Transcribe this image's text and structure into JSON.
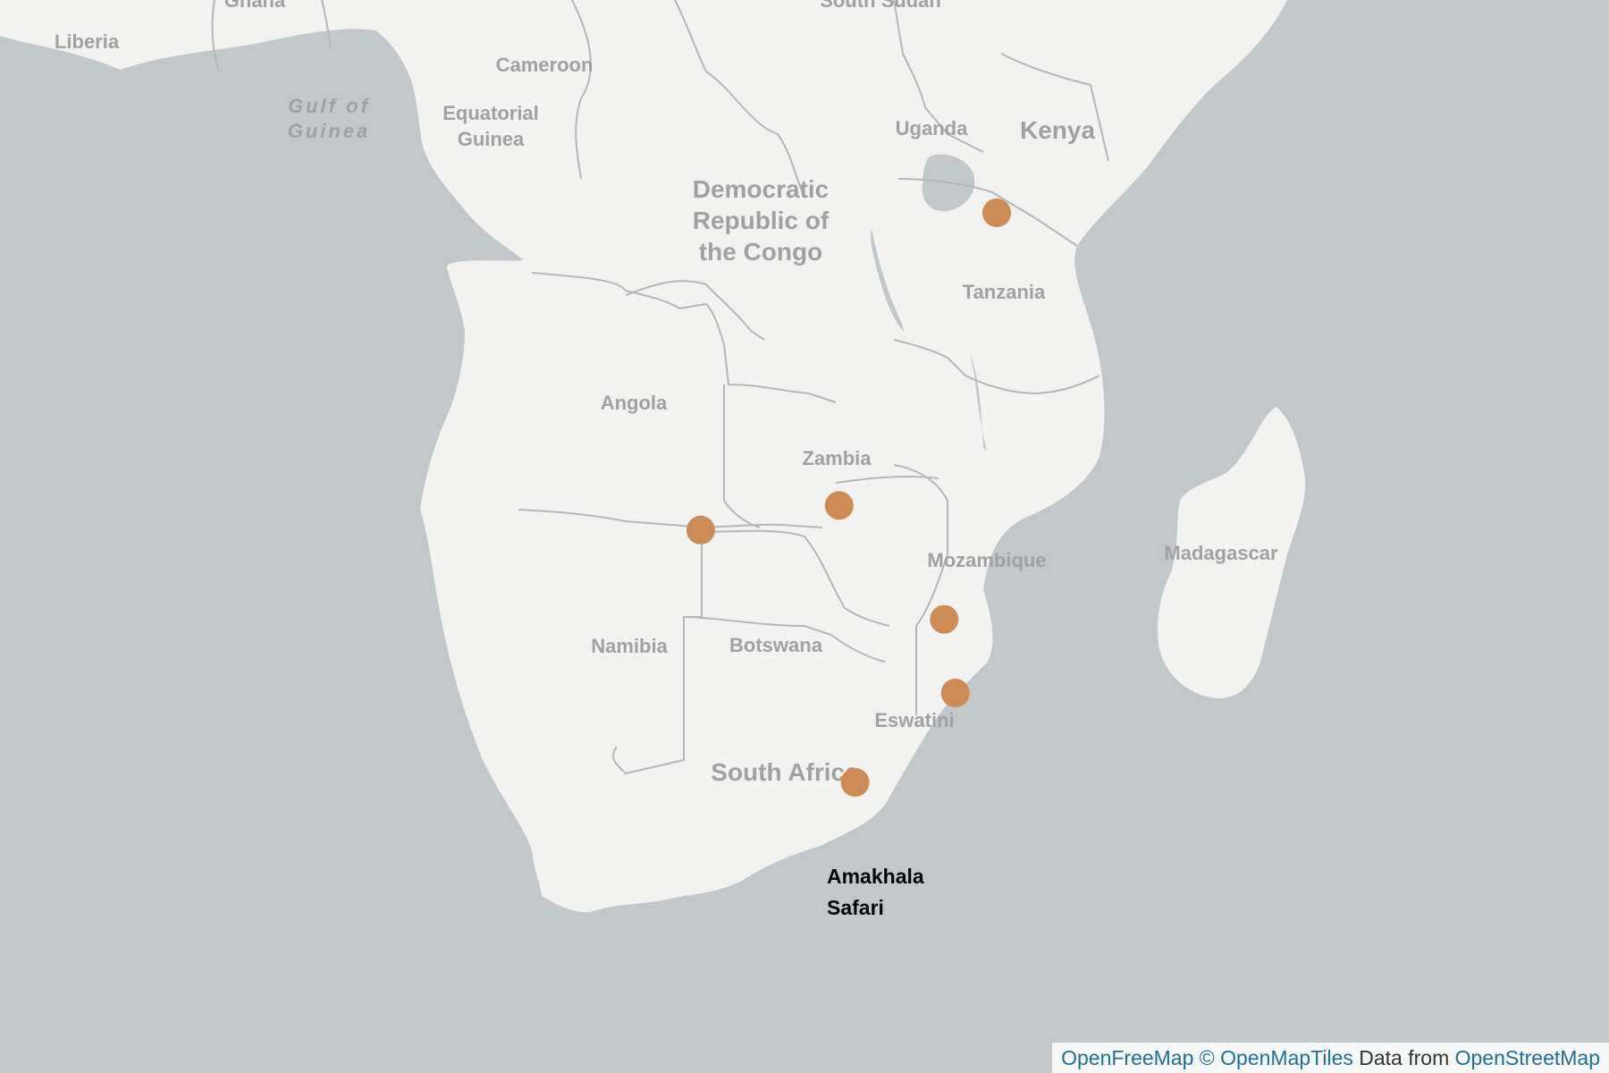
{
  "map": {
    "colors": {
      "water": "#c2c7c9",
      "land": "#f2f2f1",
      "border": "#b4b7b8",
      "label": "#9fa1a2",
      "marker": "#cd8b55"
    },
    "country_labels": {
      "liberia": "Liberia",
      "ghana": "Ghana",
      "south_sudan": "South Sudan",
      "cameroon": "Cameroon",
      "gulf_1": "Gulf of",
      "gulf_2": "Guinea",
      "eq_guinea_1": "Equatorial",
      "eq_guinea_2": "Guinea",
      "uganda": "Uganda",
      "kenya": "Kenya",
      "drc_1": "Democratic",
      "drc_2": "Republic of",
      "drc_3": "the Congo",
      "tanzania": "Tanzania",
      "angola": "Angola",
      "zambia": "Zambia",
      "mozambique": "Mozambique",
      "madagascar": "Madagascar",
      "namibia": "Namibia",
      "botswana": "Botswana",
      "eswatini": "Eswatini",
      "south_africa": "South Africa"
    },
    "markers": [
      {
        "id": "tanzania-marker",
        "lon": 34.9,
        "lat": -1.0
      },
      {
        "id": "chobe-marker",
        "lon": 25.0,
        "lat": -17.7
      },
      {
        "id": "namibia-marker",
        "lon": 16.3,
        "lat": -19.1
      },
      {
        "id": "kruger-marker",
        "lon": 31.6,
        "lat": -24.2
      },
      {
        "id": "kwazulu-marker",
        "lon": 32.3,
        "lat": -28.4
      },
      {
        "id": "amakhala-marker",
        "lon": 26.0,
        "lat": -33.5
      }
    ],
    "marker_label_1": "Amakhala",
    "marker_label_2": "Safari"
  },
  "attribution": {
    "openfreemap": "OpenFreeMap",
    "copyright": "©",
    "openmaptiles": "OpenMapTiles",
    "data_from": "Data from",
    "openstreetmap": "OpenStreetMap"
  }
}
